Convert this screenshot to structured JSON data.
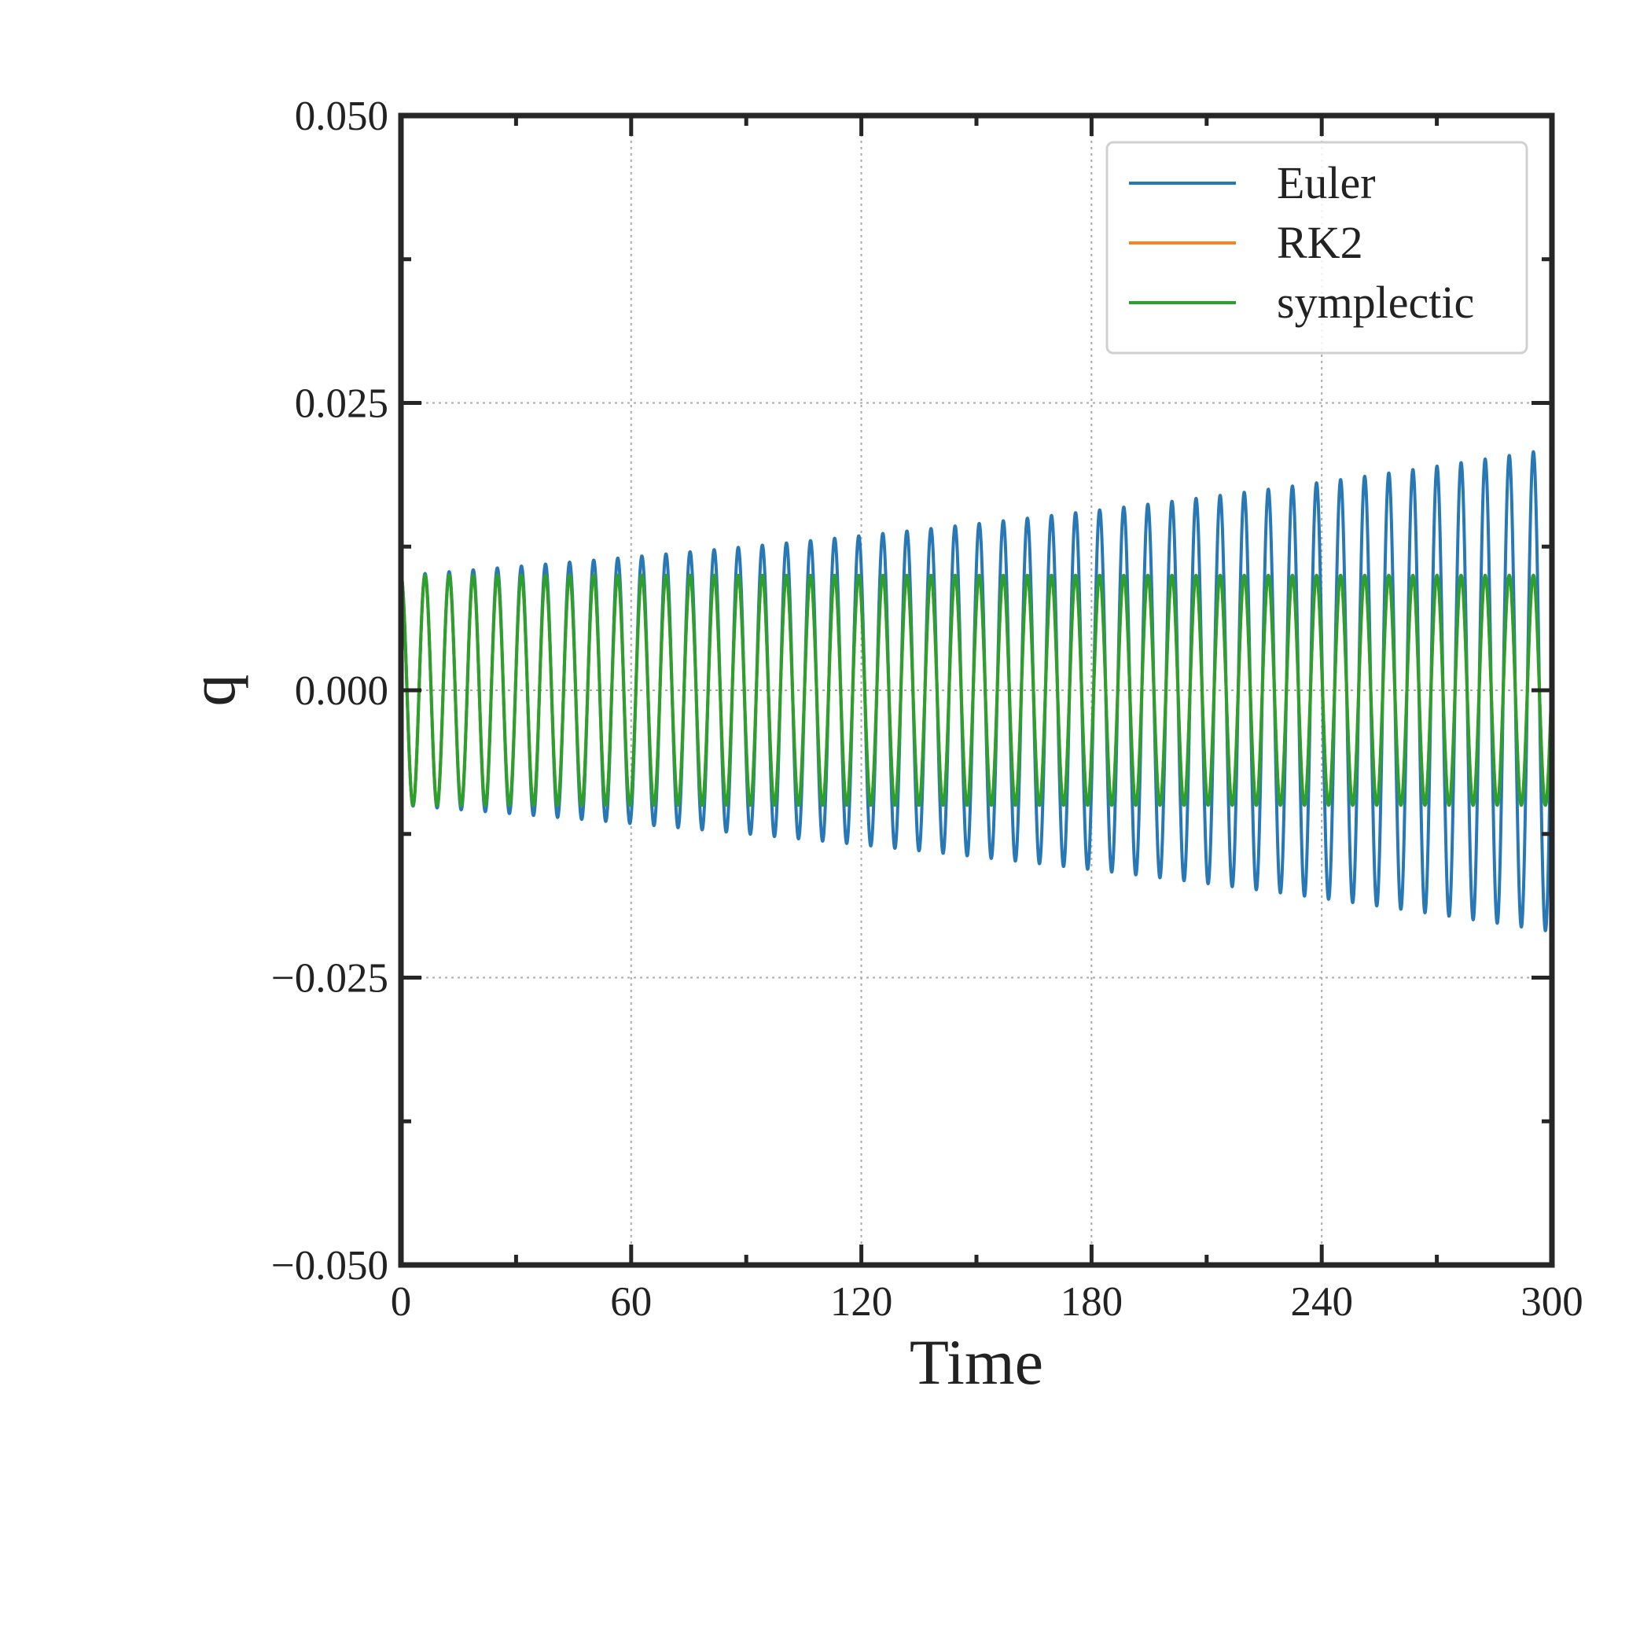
{
  "chart_data": {
    "type": "line",
    "title": "",
    "xlabel": "Time",
    "ylabel": "q",
    "xlim": [
      0,
      300
    ],
    "ylim": [
      -0.05,
      0.05
    ],
    "x_ticks": [
      0,
      60,
      120,
      180,
      240,
      300
    ],
    "x_tick_labels": [
      "0",
      "60",
      "120",
      "180",
      "240",
      "300"
    ],
    "y_ticks": [
      -0.05,
      -0.025,
      0.0,
      0.025,
      0.05
    ],
    "y_tick_labels": [
      "−0.050",
      "−0.025",
      "0.000",
      "0.025",
      "0.050"
    ],
    "grid": true,
    "legend_position": "top-right",
    "initial_value": 0.01,
    "oscillation_period": 6.28,
    "series": [
      {
        "name": "Euler",
        "color": "#2878b5",
        "initial_amplitude": 0.01,
        "final_amplitude": 0.021,
        "amplitude_growth": "exponential"
      },
      {
        "name": "RK2",
        "color": "#f5861f",
        "initial_amplitude": 0.01,
        "final_amplitude": 0.01,
        "amplitude_growth": "none"
      },
      {
        "name": "symplectic",
        "color": "#2ca02c",
        "initial_amplitude": 0.01,
        "final_amplitude": 0.01,
        "amplitude_growth": "none"
      }
    ]
  }
}
